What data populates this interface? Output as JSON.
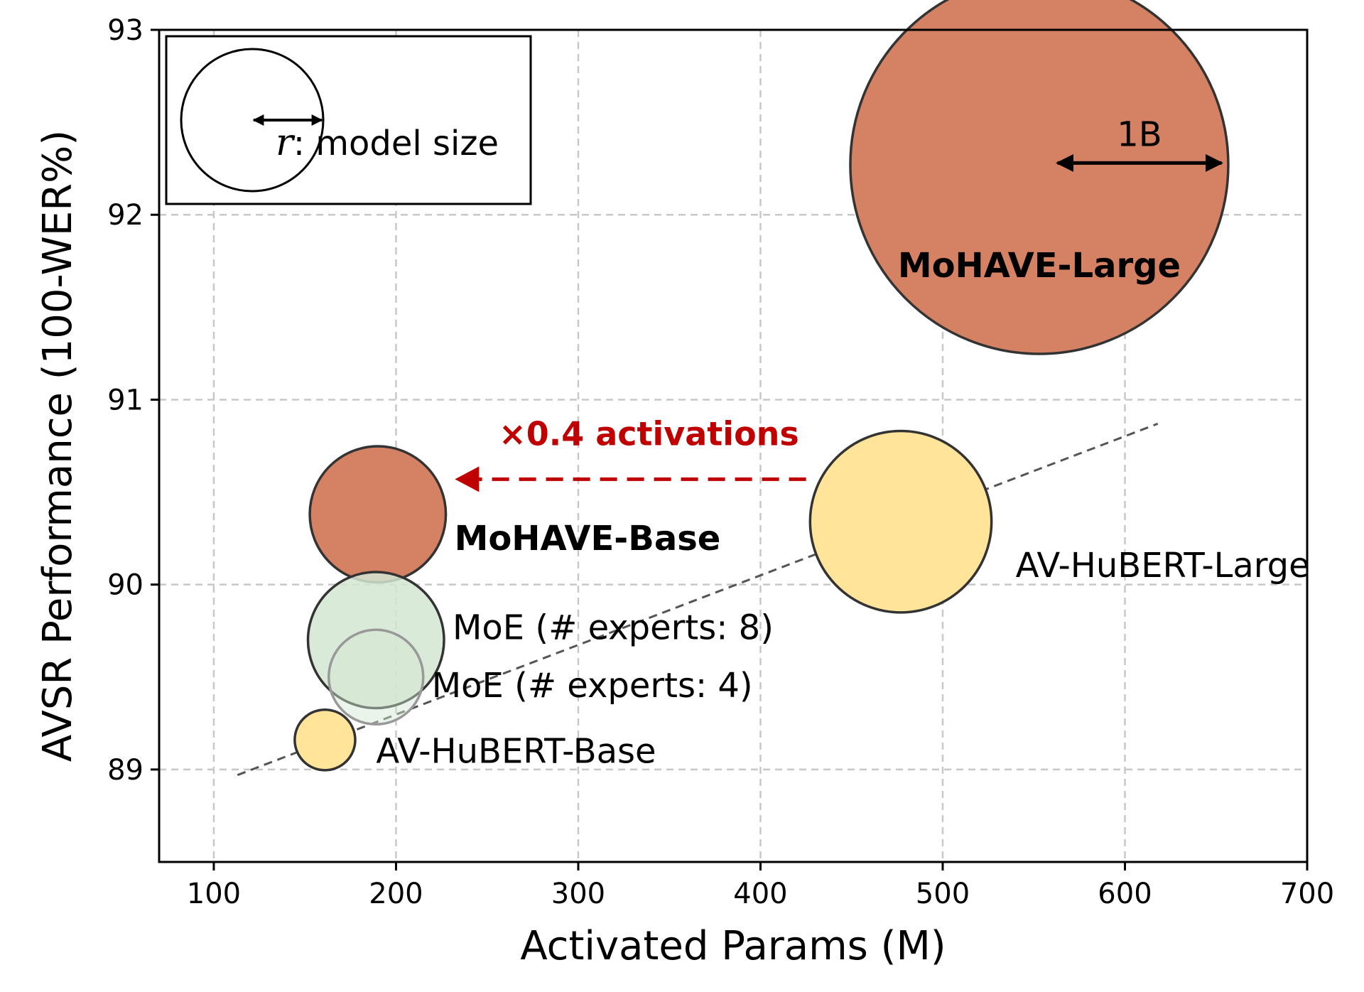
{
  "chart_data": {
    "type": "scatter",
    "subtype": "bubble",
    "xlabel": "Activated Params (M)",
    "ylabel": "AVSR Performance (100-WER%)",
    "xlim": [
      70,
      700
    ],
    "ylim": [
      88.5,
      93
    ],
    "xticks": [
      100,
      200,
      300,
      400,
      500,
      600,
      700
    ],
    "yticks": [
      89,
      90,
      91,
      92,
      93
    ],
    "grid": true,
    "colors": {
      "mohave": "#D58163",
      "avhubert": "#FFE49A",
      "moe": "#D3E6D1",
      "annotation": "#C00000",
      "trend": "#555555",
      "edge": "#333333"
    },
    "points": [
      {
        "label": "MoHAVE-Large",
        "x": 553,
        "y": 92.27,
        "size_B": 1.0,
        "group": "mohave",
        "bold": true
      },
      {
        "label": "MoHAVE-Base",
        "x": 190,
        "y": 90.38,
        "size_B": 0.36,
        "group": "mohave",
        "bold": true
      },
      {
        "label": "AV-HuBERT-Large",
        "x": 477,
        "y": 90.34,
        "size_B": 0.48,
        "group": "avhubert",
        "bold": false
      },
      {
        "label": "MoE (# experts: 8)",
        "x": 189,
        "y": 89.7,
        "size_B": 0.36,
        "group": "moe",
        "bold": false
      },
      {
        "label": "MoE (# experts: 4)",
        "x": 189,
        "y": 89.5,
        "size_B": 0.25,
        "group": "moe",
        "bold": false
      },
      {
        "label": "AV-HuBERT-Base",
        "x": 161,
        "y": 89.16,
        "size_B": 0.16,
        "group": "avhubert",
        "bold": false
      }
    ],
    "trend_line": {
      "x": [
        113,
        618
      ],
      "y": [
        88.97,
        90.87
      ]
    },
    "annotations": {
      "activation_arrow": {
        "text": "×0.4 activations",
        "from": [
          425,
          90.57
        ],
        "to": [
          237,
          90.57
        ]
      },
      "scale_arrow": {
        "text": "1B",
        "from": [
          563,
          92.28
        ],
        "to": [
          653,
          92.28
        ]
      }
    },
    "legend": {
      "placement": "top-left",
      "symbol": "r",
      "text": ": model size"
    }
  }
}
